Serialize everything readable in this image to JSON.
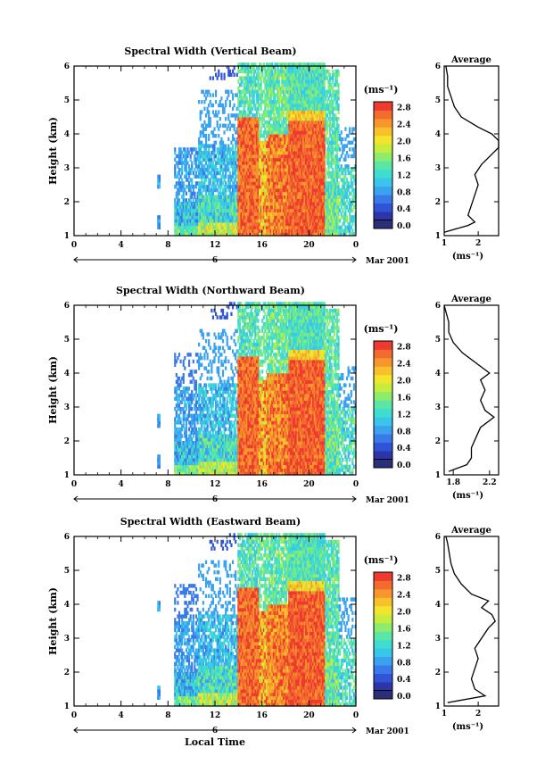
{
  "chart_data": [
    {
      "type": "heatmap",
      "title": "Spectral Width (Vertical Beam)",
      "ylabel": "Height (km)",
      "xlabel": "",
      "x_ticks": [
        "0",
        "4",
        "8",
        "12",
        "16",
        "20",
        "0"
      ],
      "y_ticks": [
        "1",
        "2",
        "3",
        "4",
        "5",
        "6"
      ],
      "xlim": [
        0,
        24
      ],
      "ylim": [
        1,
        6
      ],
      "date_day": "6",
      "date_label": "Mar 2001",
      "colorbar": {
        "unit": "(ms⁻¹)",
        "labels": [
          "0.0",
          "0.4",
          "0.8",
          "1.2",
          "1.6",
          "2.0",
          "2.4",
          "2.8"
        ],
        "range": [
          0,
          3.0
        ]
      },
      "profile": {
        "title": "Average",
        "xlabel": "(ms⁻¹)",
        "x_ticks": [
          "1",
          "2"
        ],
        "xlim": [
          1,
          2.6
        ],
        "ylim": [
          1,
          6
        ],
        "y_ticks": [
          "1",
          "2",
          "3",
          "4",
          "5",
          "6"
        ],
        "points": [
          [
            1.0,
            1.1
          ],
          [
            1.7,
            1.3
          ],
          [
            1.9,
            1.4
          ],
          [
            1.7,
            1.6
          ],
          [
            1.8,
            1.9
          ],
          [
            1.9,
            2.2
          ],
          [
            2.0,
            2.5
          ],
          [
            1.9,
            2.8
          ],
          [
            2.1,
            3.1
          ],
          [
            2.4,
            3.4
          ],
          [
            2.6,
            3.6
          ],
          [
            2.6,
            3.8
          ],
          [
            2.4,
            4.0
          ],
          [
            2.0,
            4.2
          ],
          [
            1.5,
            4.5
          ],
          [
            1.3,
            4.8
          ],
          [
            1.2,
            5.1
          ],
          [
            1.1,
            5.4
          ],
          [
            1.1,
            5.7
          ],
          [
            1.05,
            6.0
          ]
        ]
      }
    },
    {
      "type": "heatmap",
      "title": "Spectral Width (Northward Beam)",
      "ylabel": "Height (km)",
      "xlabel": "",
      "x_ticks": [
        "0",
        "4",
        "8",
        "12",
        "16",
        "20",
        "0"
      ],
      "y_ticks": [
        "1",
        "2",
        "3",
        "4",
        "5",
        "6"
      ],
      "xlim": [
        0,
        24
      ],
      "ylim": [
        1,
        6
      ],
      "date_day": "6",
      "date_label": "Mar 2001",
      "colorbar": {
        "unit": "(ms⁻¹)",
        "labels": [
          "0.0",
          "0.4",
          "0.8",
          "1.2",
          "1.6",
          "2.0",
          "2.4",
          "2.8"
        ],
        "range": [
          0,
          3.0
        ]
      },
      "profile": {
        "title": "Average",
        "xlabel": "(ms⁻¹)",
        "x_ticks": [
          "1.8",
          "2.2"
        ],
        "xlim": [
          1.7,
          2.3
        ],
        "ylim": [
          1,
          6
        ],
        "y_ticks": [
          "1",
          "2",
          "3",
          "4",
          "5",
          "6"
        ],
        "points": [
          [
            1.75,
            1.1
          ],
          [
            1.95,
            1.3
          ],
          [
            2.0,
            1.5
          ],
          [
            2.0,
            1.8
          ],
          [
            2.05,
            2.1
          ],
          [
            2.1,
            2.4
          ],
          [
            2.25,
            2.7
          ],
          [
            2.15,
            2.9
          ],
          [
            2.1,
            3.2
          ],
          [
            2.15,
            3.5
          ],
          [
            2.1,
            3.8
          ],
          [
            2.2,
            4.0
          ],
          [
            2.05,
            4.3
          ],
          [
            1.9,
            4.6
          ],
          [
            1.8,
            4.9
          ],
          [
            1.75,
            5.2
          ],
          [
            1.75,
            5.5
          ],
          [
            1.72,
            5.8
          ],
          [
            1.7,
            6.0
          ]
        ]
      }
    },
    {
      "type": "heatmap",
      "title": "Spectral Width (Eastward Beam)",
      "ylabel": "Height (km)",
      "xlabel": "Local Time",
      "x_ticks": [
        "0",
        "4",
        "8",
        "12",
        "16",
        "20",
        "0"
      ],
      "y_ticks": [
        "1",
        "2",
        "3",
        "4",
        "5",
        "6"
      ],
      "xlim": [
        0,
        24
      ],
      "ylim": [
        1,
        6
      ],
      "date_day": "6",
      "date_label": "Mar 2001",
      "colorbar": {
        "unit": "(ms⁻¹)",
        "labels": [
          "0.0",
          "0.4",
          "0.8",
          "1.2",
          "1.6",
          "2.0",
          "2.4",
          "2.8"
        ],
        "range": [
          0,
          3.0
        ]
      },
      "profile": {
        "title": "Average",
        "xlabel": "(ms⁻¹)",
        "x_ticks": [
          "1",
          "2"
        ],
        "xlim": [
          1,
          2.6
        ],
        "ylim": [
          1,
          6
        ],
        "y_ticks": [
          "1",
          "2",
          "3",
          "4",
          "5",
          "6"
        ],
        "points": [
          [
            1.1,
            1.1
          ],
          [
            2.2,
            1.3
          ],
          [
            1.9,
            1.5
          ],
          [
            1.8,
            1.8
          ],
          [
            1.9,
            2.1
          ],
          [
            2.0,
            2.4
          ],
          [
            1.9,
            2.7
          ],
          [
            2.1,
            3.0
          ],
          [
            2.3,
            3.3
          ],
          [
            2.5,
            3.5
          ],
          [
            2.4,
            3.7
          ],
          [
            2.1,
            3.9
          ],
          [
            2.3,
            4.1
          ],
          [
            1.8,
            4.3
          ],
          [
            1.5,
            4.6
          ],
          [
            1.3,
            4.9
          ],
          [
            1.2,
            5.2
          ],
          [
            1.15,
            5.5
          ],
          [
            1.1,
            5.8
          ],
          [
            1.05,
            6.0
          ]
        ]
      }
    }
  ]
}
